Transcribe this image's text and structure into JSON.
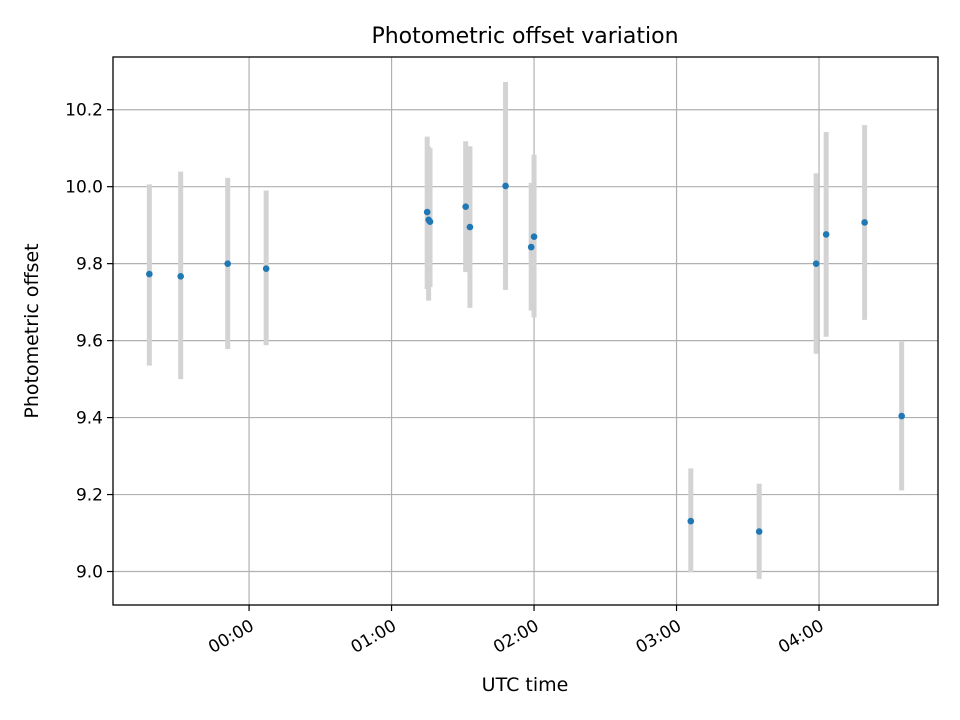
{
  "chart_data": {
    "type": "scatter",
    "title": "Photometric offset variation",
    "xlabel": "UTC time",
    "ylabel": "Photometric offset",
    "x_unit": "hours from 00:00 UTC",
    "xlim": [
      -0.955,
      4.835
    ],
    "ylim": [
      8.913,
      10.337
    ],
    "grid": true,
    "xticks": [
      {
        "value": 0,
        "label": "00:00"
      },
      {
        "value": 1,
        "label": "01:00"
      },
      {
        "value": 2,
        "label": "02:00"
      },
      {
        "value": 3,
        "label": "03:00"
      },
      {
        "value": 4,
        "label": "04:00"
      }
    ],
    "yticks": [
      {
        "value": 9.0,
        "label": "9.0"
      },
      {
        "value": 9.2,
        "label": "9.2"
      },
      {
        "value": 9.4,
        "label": "9.4"
      },
      {
        "value": 9.6,
        "label": "9.6"
      },
      {
        "value": 9.8,
        "label": "9.8"
      },
      {
        "value": 10.0,
        "label": "10.0"
      },
      {
        "value": 10.2,
        "label": "10.2"
      }
    ],
    "marker_color": "#1f77b4",
    "errorbar_color": "#d3d3d3",
    "points": [
      {
        "x": -0.7,
        "y": 9.773,
        "err_low": 0.238,
        "err_high": 0.233
      },
      {
        "x": -0.48,
        "y": 9.767,
        "err_low": 0.267,
        "err_high": 0.272
      },
      {
        "x": -0.15,
        "y": 9.8,
        "err_low": 0.222,
        "err_high": 0.223
      },
      {
        "x": 0.12,
        "y": 9.787,
        "err_low": 0.199,
        "err_high": 0.203
      },
      {
        "x": 1.25,
        "y": 9.934,
        "err_low": 0.2,
        "err_high": 0.196
      },
      {
        "x": 1.26,
        "y": 9.914,
        "err_low": 0.21,
        "err_high": 0.19
      },
      {
        "x": 1.27,
        "y": 9.909,
        "err_low": 0.17,
        "err_high": 0.191
      },
      {
        "x": 1.52,
        "y": 9.948,
        "err_low": 0.17,
        "err_high": 0.17
      },
      {
        "x": 1.55,
        "y": 9.895,
        "err_low": 0.21,
        "err_high": 0.21
      },
      {
        "x": 1.8,
        "y": 10.002,
        "err_low": 0.27,
        "err_high": 0.27
      },
      {
        "x": 1.98,
        "y": 9.843,
        "err_low": 0.165,
        "err_high": 0.167
      },
      {
        "x": 2.0,
        "y": 9.87,
        "err_low": 0.21,
        "err_high": 0.213
      },
      {
        "x": 3.1,
        "y": 9.131,
        "err_low": 0.133,
        "err_high": 0.137
      },
      {
        "x": 3.58,
        "y": 9.104,
        "err_low": 0.123,
        "err_high": 0.124
      },
      {
        "x": 3.98,
        "y": 9.8,
        "err_low": 0.234,
        "err_high": 0.235
      },
      {
        "x": 4.05,
        "y": 9.876,
        "err_low": 0.266,
        "err_high": 0.266
      },
      {
        "x": 4.32,
        "y": 9.907,
        "err_low": 0.253,
        "err_high": 0.253
      },
      {
        "x": 4.58,
        "y": 9.404,
        "err_low": 0.193,
        "err_high": 0.193
      }
    ]
  }
}
